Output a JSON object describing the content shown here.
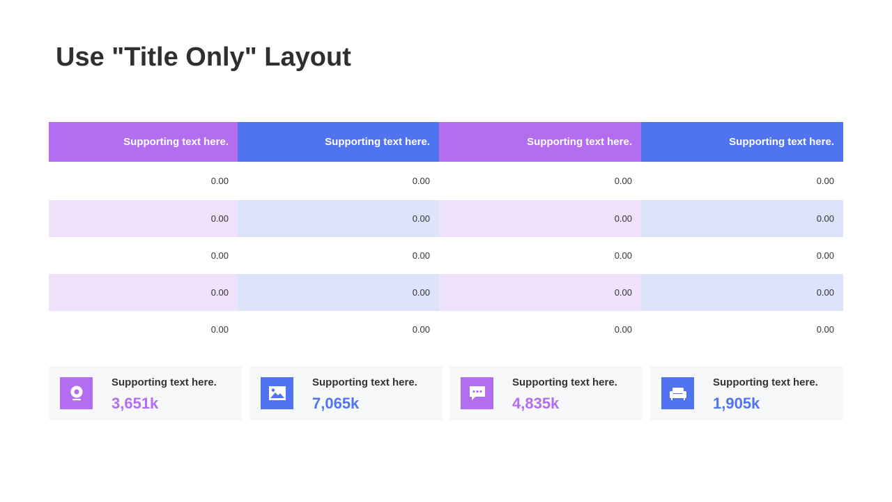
{
  "slide": {
    "title": "Use \"Title Only\" Layout"
  },
  "table": {
    "headers": [
      "Supporting text here.",
      "Supporting text here.",
      "Supporting text here.",
      "Supporting text here."
    ],
    "rows": [
      [
        "0.00",
        "0.00",
        "0.00",
        "0.00"
      ],
      [
        "0.00",
        "0.00",
        "0.00",
        "0.00"
      ],
      [
        "0.00",
        "0.00",
        "0.00",
        "0.00"
      ],
      [
        "0.00",
        "0.00",
        "0.00",
        "0.00"
      ],
      [
        "0.00",
        "0.00",
        "0.00",
        "0.00"
      ]
    ]
  },
  "cards": [
    {
      "label": "Supporting text here.",
      "value": "3,651k",
      "icon": "webcam-icon",
      "color": "#b36ef0"
    },
    {
      "label": "Supporting text here.",
      "value": "7,065k",
      "icon": "image-icon",
      "color": "#5074f0"
    },
    {
      "label": "Supporting text here.",
      "value": "4,835k",
      "icon": "chat-bubble-icon",
      "color": "#b36ef0"
    },
    {
      "label": "Supporting text here.",
      "value": "1,905k",
      "icon": "sofa-icon",
      "color": "#5074f0"
    }
  ],
  "colors": {
    "purple": "#b36ef0",
    "blue": "#5074f0",
    "purple_tint": "#f0e2fb",
    "blue_tint": "#dde3fb",
    "title_text": "#2f2f2f"
  }
}
